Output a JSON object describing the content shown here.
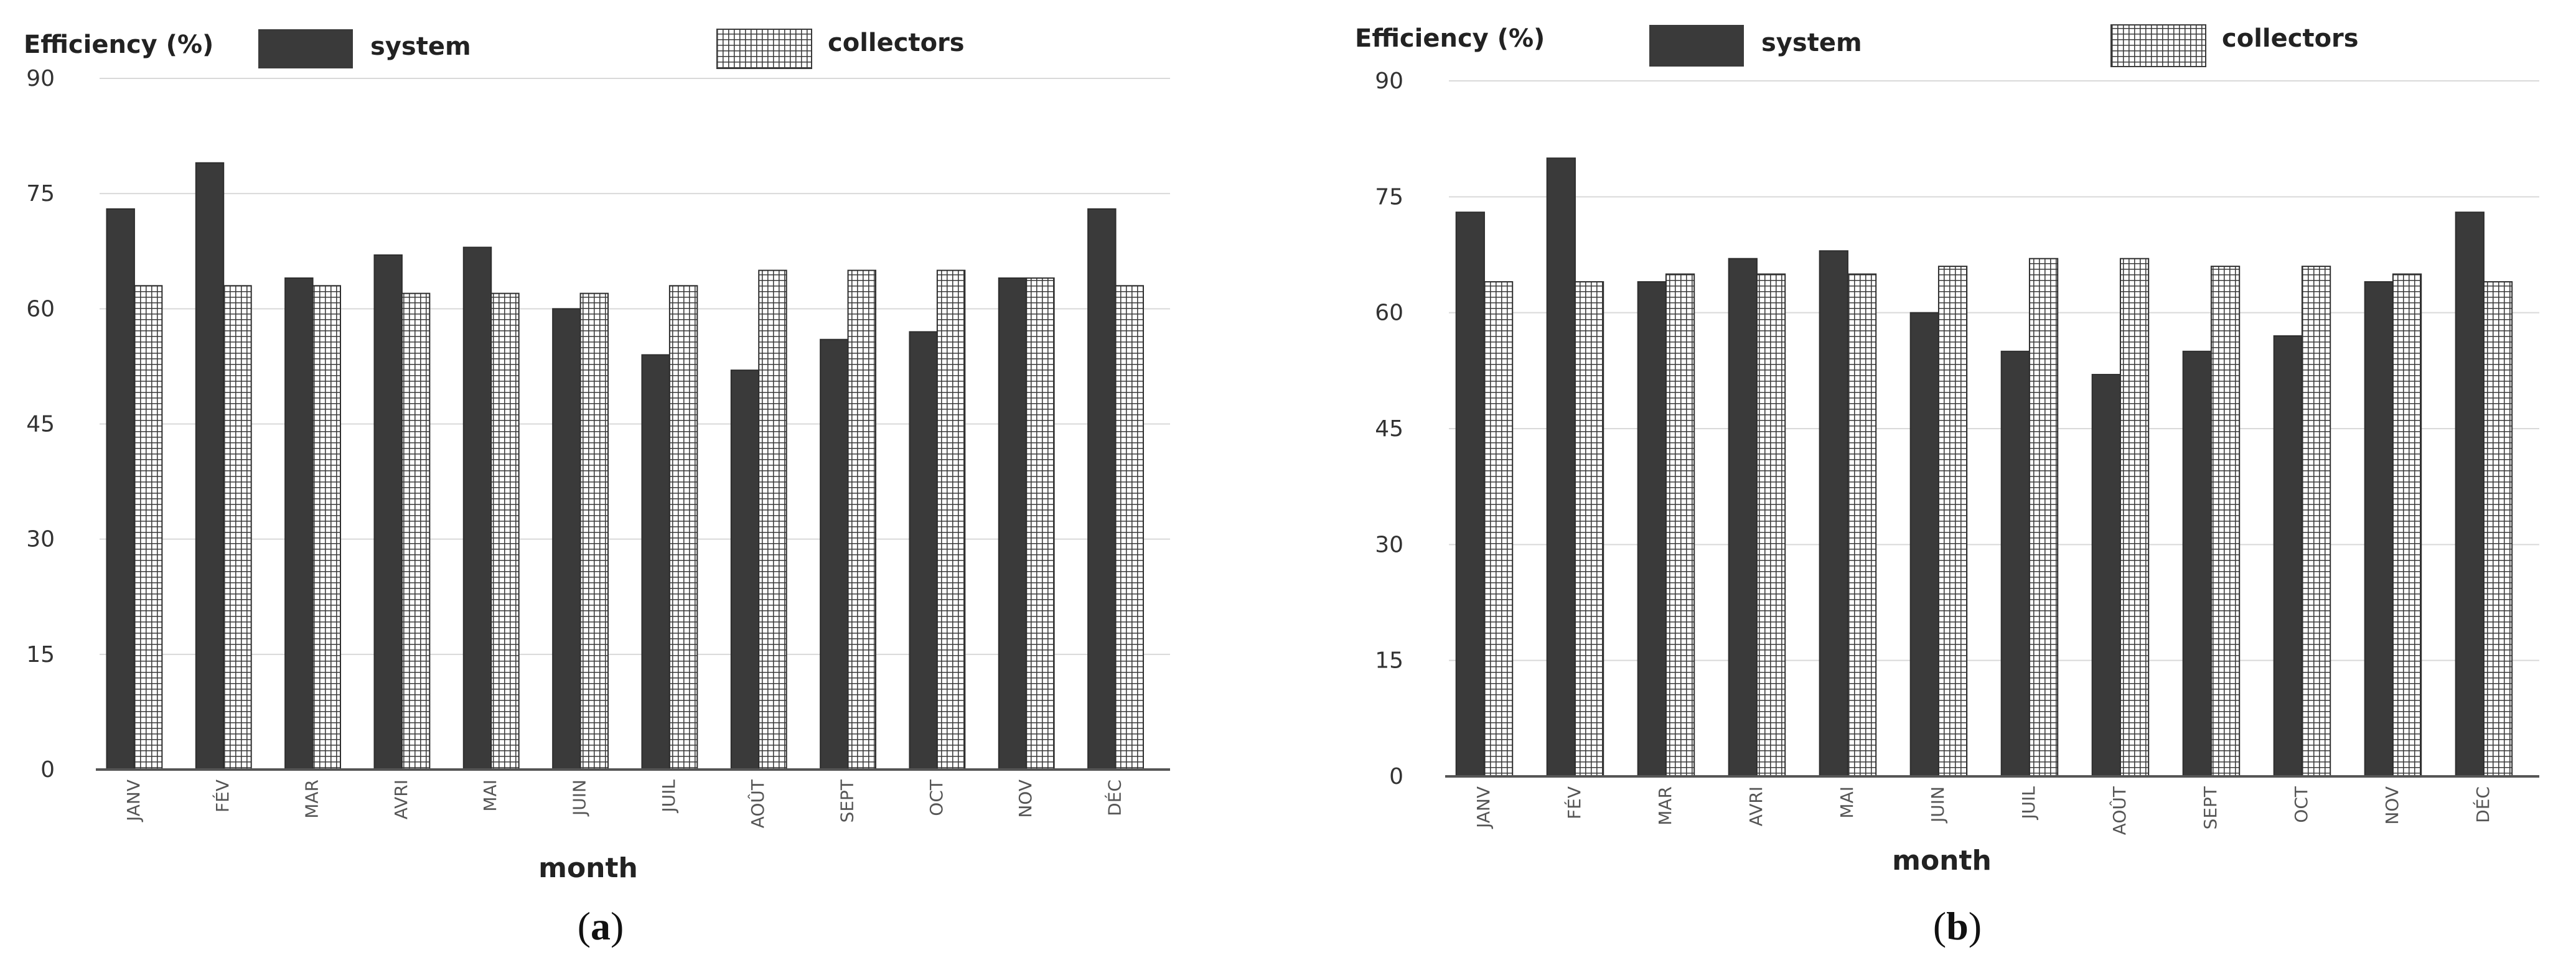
{
  "chart_data": [
    {
      "panel": "a",
      "type": "bar",
      "title": "",
      "caption": {
        "open": "(",
        "letter": "a",
        "close": ")"
      },
      "ylabel": "Efficiency (%)",
      "xlabel": "month",
      "ylim": [
        0,
        90
      ],
      "yticks": [
        0,
        15,
        30,
        45,
        60,
        75,
        90
      ],
      "legend_position": "top",
      "categories": [
        "JANV",
        "FÉV",
        "MAR",
        "AVRI",
        "MAI",
        "JUIN",
        "JUIL",
        "AOÛT",
        "SEPT",
        "OCT",
        "NOV",
        "DÉC"
      ],
      "series": [
        {
          "name": "system",
          "pattern": "solid",
          "color": "#3a3a3a",
          "values": [
            73,
            79,
            64,
            67,
            68,
            60,
            54,
            52,
            56,
            57,
            64,
            73
          ]
        },
        {
          "name": "collectors",
          "pattern": "grid",
          "color": "#ffffff",
          "values": [
            63,
            63,
            63,
            62,
            62,
            62,
            63,
            65,
            65,
            65,
            64,
            63
          ]
        }
      ]
    },
    {
      "panel": "b",
      "type": "bar",
      "title": "",
      "caption": {
        "open": "(",
        "letter": "b",
        "close": ")"
      },
      "ylabel": "Efficiency (%)",
      "xlabel": "month",
      "ylim": [
        0,
        90
      ],
      "yticks": [
        0,
        15,
        30,
        45,
        60,
        75,
        90
      ],
      "legend_position": "top",
      "categories": [
        "JANV",
        "FÉV",
        "MAR",
        "AVRI",
        "MAI",
        "JUIN",
        "JUIL",
        "AOÛT",
        "SEPT",
        "OCT",
        "NOV",
        "DÉC"
      ],
      "series": [
        {
          "name": "system",
          "pattern": "solid",
          "color": "#3a3a3a",
          "values": [
            73,
            80,
            64,
            67,
            68,
            60,
            55,
            52,
            55,
            57,
            64,
            73
          ]
        },
        {
          "name": "collectors",
          "pattern": "grid",
          "color": "#ffffff",
          "values": [
            64,
            64,
            65,
            65,
            65,
            66,
            67,
            67,
            66,
            66,
            65,
            64
          ]
        }
      ]
    }
  ]
}
